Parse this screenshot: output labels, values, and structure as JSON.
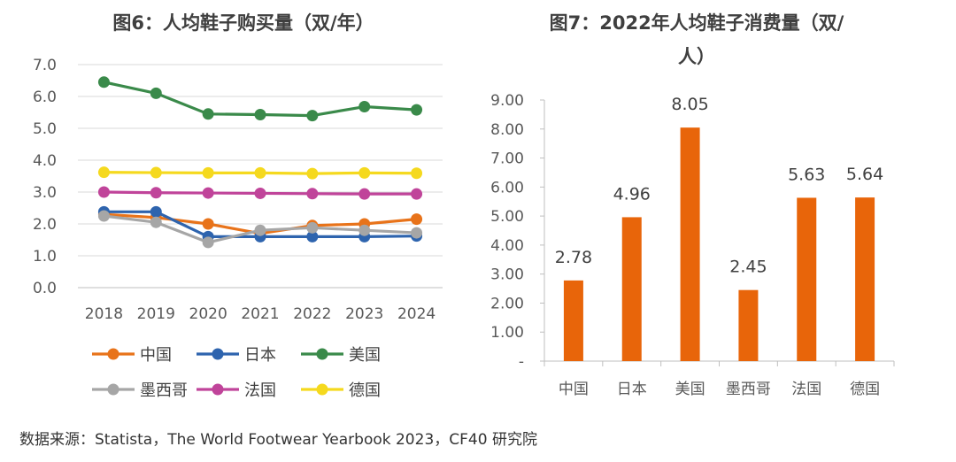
{
  "source_note": "数据来源：Statista，The World Footwear Yearbook 2023，CF40 研究院",
  "chart_data": [
    {
      "type": "line",
      "title": "图6：人均鞋子购买量（双/年）",
      "x": [
        "2018",
        "2019",
        "2020",
        "2021",
        "2022",
        "2023",
        "2024"
      ],
      "ylim": [
        0,
        7
      ],
      "yticks": [
        "0.0",
        "1.0",
        "2.0",
        "3.0",
        "4.0",
        "5.0",
        "6.0",
        "7.0"
      ],
      "grid": true,
      "legend_position": "bottom",
      "series": [
        {
          "name": "中国",
          "color": "#E8731A",
          "values": [
            2.3,
            2.2,
            2.0,
            1.7,
            1.95,
            2.0,
            2.15
          ]
        },
        {
          "name": "日本",
          "color": "#2E64AE",
          "values": [
            2.38,
            2.38,
            1.6,
            1.6,
            1.6,
            1.6,
            1.62
          ]
        },
        {
          "name": "美国",
          "color": "#3A8A4A",
          "values": [
            6.45,
            6.1,
            5.45,
            5.43,
            5.4,
            5.68,
            5.58
          ]
        },
        {
          "name": "墨西哥",
          "color": "#A6A6A6",
          "values": [
            2.25,
            2.05,
            1.42,
            1.8,
            1.88,
            1.8,
            1.72
          ]
        },
        {
          "name": "法国",
          "color": "#C0449A",
          "values": [
            3.0,
            2.98,
            2.97,
            2.96,
            2.95,
            2.94,
            2.94
          ]
        },
        {
          "name": "德国",
          "color": "#F5D91E",
          "values": [
            3.62,
            3.61,
            3.6,
            3.6,
            3.58,
            3.6,
            3.59
          ]
        }
      ]
    },
    {
      "type": "bar",
      "title": "图7：2022年人均鞋子消费量（双/人）",
      "title_lines": [
        "图7：2022年人均鞋子消费量（双/",
        "人）"
      ],
      "categories": [
        "中国",
        "日本",
        "美国",
        "墨西哥",
        "法国",
        "德国"
      ],
      "values": [
        2.78,
        4.96,
        8.05,
        2.45,
        5.63,
        5.64
      ],
      "data_labels": [
        "2.78",
        "4.96",
        "8.05",
        "2.45",
        "5.63",
        "5.64"
      ],
      "bar_color": "#E8650A",
      "ylim": [
        0,
        9
      ],
      "yticks": [
        "-",
        "1.00",
        "2.00",
        "3.00",
        "4.00",
        "5.00",
        "6.00",
        "7.00",
        "8.00",
        "9.00"
      ],
      "grid": false
    }
  ]
}
